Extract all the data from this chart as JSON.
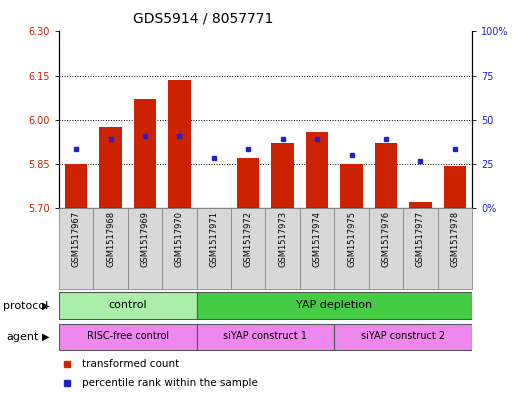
{
  "title": "GDS5914 / 8057771",
  "samples": [
    "GSM1517967",
    "GSM1517968",
    "GSM1517969",
    "GSM1517970",
    "GSM1517971",
    "GSM1517972",
    "GSM1517973",
    "GSM1517974",
    "GSM1517975",
    "GSM1517976",
    "GSM1517977",
    "GSM1517978"
  ],
  "bar_values": [
    5.85,
    5.975,
    6.07,
    6.135,
    5.702,
    5.87,
    5.92,
    5.96,
    5.85,
    5.92,
    5.72,
    5.845
  ],
  "bar_bottom": 5.7,
  "blue_marker_values": [
    5.9,
    5.935,
    5.945,
    5.945,
    5.872,
    5.9,
    5.935,
    5.935,
    5.882,
    5.935,
    5.862,
    5.9
  ],
  "ylim_left": [
    5.7,
    6.3
  ],
  "ylim_right": [
    0,
    100
  ],
  "yticks_left": [
    5.7,
    5.85,
    6.0,
    6.15,
    6.3
  ],
  "yticks_right": [
    0,
    25,
    50,
    75,
    100
  ],
  "ytick_labels_right": [
    "0%",
    "25",
    "50",
    "75",
    "100%"
  ],
  "hlines": [
    5.85,
    6.0,
    6.15
  ],
  "bar_color": "#cc2200",
  "blue_color": "#2222cc",
  "bar_width": 0.65,
  "protocol_groups": [
    {
      "label": "control",
      "start": 0,
      "end": 3,
      "color": "#99ee99"
    },
    {
      "label": "YAP depletion",
      "start": 4,
      "end": 11,
      "color": "#44cc44"
    }
  ],
  "agent_groups": [
    {
      "label": "RISC-free control",
      "start": 0,
      "end": 3,
      "color": "#ee88ee"
    },
    {
      "label": "siYAP construct 1",
      "start": 4,
      "end": 7,
      "color": "#ee88ee"
    },
    {
      "label": "siYAP construct 2",
      "start": 8,
      "end": 11,
      "color": "#ee88ee"
    }
  ],
  "protocol_label": "protocol",
  "agent_label": "agent",
  "legend1": "transformed count",
  "legend2": "percentile rank within the sample",
  "bg_color": "#ffffff",
  "ax_bg_color": "#ffffff",
  "tick_label_color_left": "#cc2200",
  "tick_label_color_right": "#2222cc",
  "title_fontsize": 10,
  "tick_fontsize": 7,
  "sample_fontsize": 6,
  "cell_facecolor": "#d8d8d8",
  "cell_edgecolor": "#888888"
}
